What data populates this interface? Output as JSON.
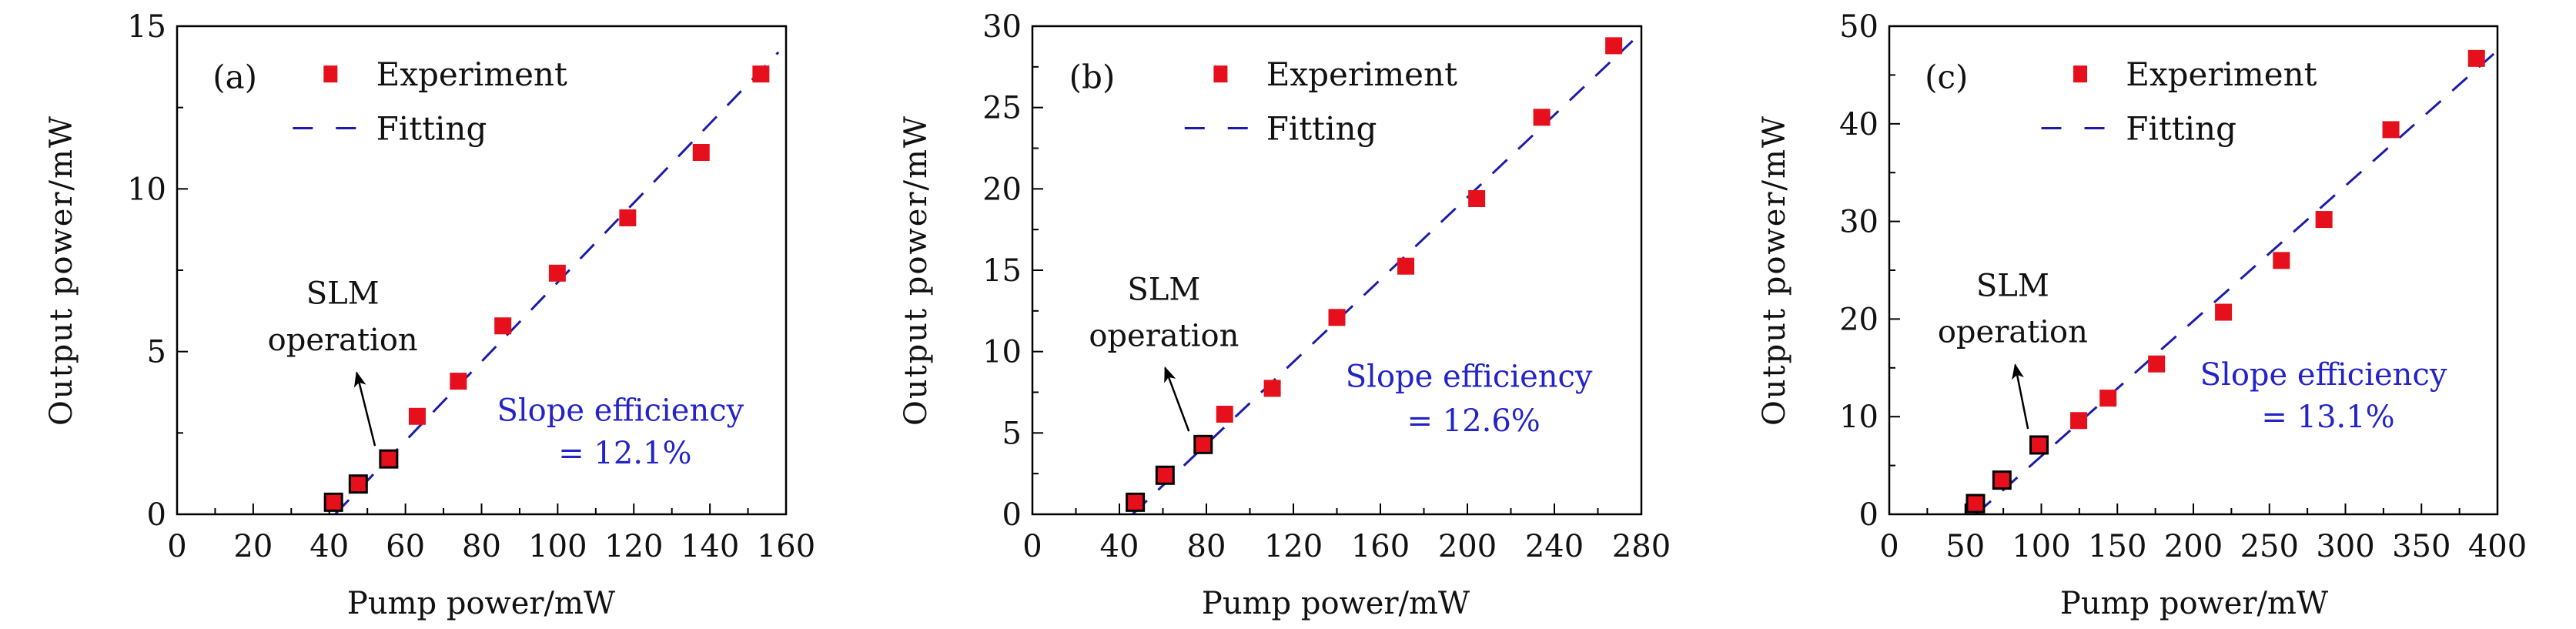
{
  "colors": {
    "experiment": "#e6101c",
    "fitting": "#1c1ca8",
    "slope_text": "#2323c8",
    "axis": "#000000"
  },
  "chart_data": [
    {
      "type": "scatter",
      "panel_label": "(a)",
      "xlabel": "Pump power/mW",
      "ylabel": "Output power/mW",
      "xlim": [
        0,
        160
      ],
      "ylim": [
        0,
        15
      ],
      "xticks": [
        0,
        20,
        40,
        60,
        80,
        100,
        120,
        140,
        160
      ],
      "yticks": [
        0,
        5,
        10,
        15
      ],
      "x_minor_step": 10,
      "y_minor_step": 2.5,
      "grid": false,
      "legend": {
        "placement": "top-left",
        "entries": [
          "Experiment",
          "Fitting"
        ]
      },
      "series": [
        {
          "name": "Experiment",
          "marker": "square",
          "points": [
            {
              "x": 41.1,
              "y": 0.37,
              "slm": true
            },
            {
              "x": 47.6,
              "y": 0.93,
              "slm": true
            },
            {
              "x": 55.6,
              "y": 1.7,
              "slm": true
            },
            {
              "x": 63.1,
              "y": 3.01
            },
            {
              "x": 73.9,
              "y": 4.09
            },
            {
              "x": 85.6,
              "y": 5.79
            },
            {
              "x": 99.9,
              "y": 7.41
            },
            {
              "x": 118.4,
              "y": 9.11
            },
            {
              "x": 137.7,
              "y": 11.12
            },
            {
              "x": 153.4,
              "y": 13.53
            }
          ]
        },
        {
          "name": "Fitting",
          "line": "dashed",
          "points": [
            {
              "x": 41.5,
              "y": 0
            },
            {
              "x": 158,
              "y": 14.2
            }
          ]
        }
      ],
      "annotations": {
        "slm": [
          "SLM",
          "operation"
        ],
        "slope": [
          "Slope efficiency",
          "= 12.1%"
        ]
      }
    },
    {
      "type": "scatter",
      "panel_label": "(b)",
      "xlabel": "Pump power/mW",
      "ylabel": "Output power/mW",
      "xlim": [
        0,
        280
      ],
      "ylim": [
        0,
        30
      ],
      "xticks": [
        0,
        40,
        80,
        120,
        160,
        200,
        240,
        280
      ],
      "yticks": [
        0,
        5,
        10,
        15,
        20,
        25,
        30
      ],
      "x_minor_step": 20,
      "y_minor_step": 2.5,
      "grid": false,
      "legend": {
        "placement": "top-left",
        "entries": [
          "Experiment",
          "Fitting"
        ]
      },
      "series": [
        {
          "name": "Experiment",
          "marker": "square",
          "points": [
            {
              "x": 47.3,
              "y": 0.74,
              "slm": true
            },
            {
              "x": 61.0,
              "y": 2.4,
              "slm": true
            },
            {
              "x": 78.5,
              "y": 4.29,
              "slm": true
            },
            {
              "x": 88.4,
              "y": 6.15
            },
            {
              "x": 110.3,
              "y": 7.74
            },
            {
              "x": 140.0,
              "y": 12.1
            },
            {
              "x": 171.7,
              "y": 15.25
            },
            {
              "x": 204.3,
              "y": 19.4
            },
            {
              "x": 234.2,
              "y": 24.4
            },
            {
              "x": 267.3,
              "y": 28.8
            }
          ]
        },
        {
          "name": "Fitting",
          "line": "dashed",
          "points": [
            {
              "x": 46,
              "y": 0
            },
            {
              "x": 276,
              "y": 29.1
            }
          ]
        }
      ],
      "annotations": {
        "slm": [
          "SLM",
          "operation"
        ],
        "slope": [
          "Slope efficiency",
          "= 12.6%"
        ]
      }
    },
    {
      "type": "scatter",
      "panel_label": "(c)",
      "xlabel": "Pump power/mW",
      "ylabel": "Output power/mW",
      "xlim": [
        0,
        400
      ],
      "ylim": [
        0,
        50
      ],
      "xticks": [
        0,
        50,
        100,
        150,
        200,
        250,
        300,
        350,
        400
      ],
      "yticks": [
        0,
        10,
        20,
        30,
        40,
        50
      ],
      "x_minor_step": 25,
      "y_minor_step": 5,
      "grid": false,
      "legend": {
        "placement": "top-left",
        "entries": [
          "Experiment",
          "Fitting"
        ]
      },
      "series": [
        {
          "name": "Experiment",
          "marker": "square",
          "points": [
            {
              "x": 56.7,
              "y": 1.1,
              "slm": true
            },
            {
              "x": 74.1,
              "y": 3.5,
              "slm": true
            },
            {
              "x": 98.5,
              "y": 7.1,
              "slm": true
            },
            {
              "x": 124.6,
              "y": 9.6
            },
            {
              "x": 143.9,
              "y": 11.9
            },
            {
              "x": 175.8,
              "y": 15.4
            },
            {
              "x": 219.8,
              "y": 20.7
            },
            {
              "x": 257.9,
              "y": 26.0
            },
            {
              "x": 285.9,
              "y": 30.2
            },
            {
              "x": 329.9,
              "y": 39.4
            },
            {
              "x": 386.2,
              "y": 46.7
            }
          ]
        },
        {
          "name": "Fitting",
          "line": "dashed",
          "points": [
            {
              "x": 57,
              "y": 0
            },
            {
              "x": 400,
              "y": 47.5
            }
          ]
        }
      ],
      "annotations": {
        "slm": [
          "SLM",
          "operation"
        ],
        "slope": [
          "Slope efficiency",
          "= 13.1%"
        ]
      }
    }
  ]
}
